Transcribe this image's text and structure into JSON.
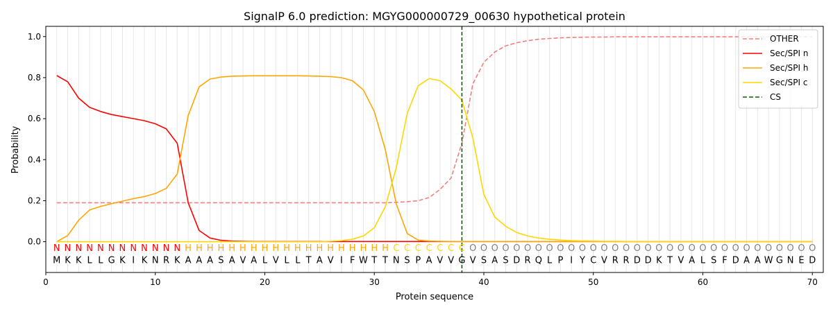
{
  "chart_data": {
    "type": "line",
    "title": "SignalP 6.0 prediction: MGYG000000729_00630 hypothetical protein",
    "xlabel": "Protein sequence",
    "ylabel": "Probability",
    "xlim": [
      0,
      71
    ],
    "ylim": [
      -0.15,
      1.05
    ],
    "x_ticks": [
      0,
      10,
      20,
      30,
      40,
      50,
      60,
      70
    ],
    "y_ticks": [
      0.0,
      0.2,
      0.4,
      0.6,
      0.8,
      1.0
    ],
    "legend_position": "top-right",
    "grid": "vertical lines at each residue",
    "sequence": [
      "M",
      "K",
      "K",
      "L",
      "L",
      "G",
      "K",
      "I",
      "K",
      "N",
      "R",
      "K",
      "A",
      "A",
      "A",
      "S",
      "A",
      "V",
      "A",
      "L",
      "V",
      "L",
      "L",
      "T",
      "A",
      "V",
      "I",
      "F",
      "W",
      "T",
      "T",
      "N",
      "S",
      "P",
      "A",
      "V",
      "V",
      "G",
      "V",
      "S",
      "A",
      "S",
      "D",
      "R",
      "Q",
      "L",
      "P",
      "I",
      "Y",
      "C",
      "V",
      "R",
      "R",
      "D",
      "D",
      "K",
      "T",
      "V",
      "A",
      "L",
      "S",
      "F",
      "D",
      "A",
      "A",
      "W",
      "G",
      "N",
      "E",
      "D"
    ],
    "region_labels": [
      "N",
      "N",
      "N",
      "N",
      "N",
      "N",
      "N",
      "N",
      "N",
      "N",
      "N",
      "N",
      "H",
      "H",
      "H",
      "H",
      "H",
      "H",
      "H",
      "H",
      "H",
      "H",
      "H",
      "H",
      "H",
      "H",
      "H",
      "H",
      "H",
      "H",
      "H",
      "C",
      "C",
      "C",
      "C",
      "C",
      "C",
      "C",
      "O",
      "O",
      "O",
      "O",
      "O",
      "O",
      "O",
      "O",
      "O",
      "O",
      "O",
      "O",
      "O",
      "O",
      "O",
      "O",
      "O",
      "O",
      "O",
      "O",
      "O",
      "O",
      "O",
      "O",
      "O",
      "O",
      "O",
      "O",
      "O",
      "O",
      "O",
      "O"
    ],
    "region_colors": {
      "N": "#ff0000",
      "H": "#ffa500",
      "C": "#ffd700",
      "O": "#808080"
    },
    "cleavage_site": 38,
    "series": [
      {
        "name": "OTHER",
        "color": "#f08080",
        "style": "dashed",
        "values": [
          0.19,
          0.19,
          0.19,
          0.19,
          0.19,
          0.19,
          0.19,
          0.19,
          0.19,
          0.19,
          0.19,
          0.19,
          0.19,
          0.19,
          0.19,
          0.19,
          0.19,
          0.19,
          0.19,
          0.19,
          0.19,
          0.19,
          0.19,
          0.19,
          0.19,
          0.19,
          0.19,
          0.19,
          0.19,
          0.19,
          0.19,
          0.192,
          0.195,
          0.2,
          0.215,
          0.255,
          0.31,
          0.48,
          0.77,
          0.875,
          0.925,
          0.955,
          0.97,
          0.98,
          0.987,
          0.991,
          0.994,
          0.996,
          0.997,
          0.998,
          0.998,
          0.999,
          0.999,
          0.999,
          0.999,
          0.999,
          0.999,
          0.999,
          0.999,
          0.999,
          0.999,
          0.999,
          0.999,
          0.999,
          0.999,
          0.999,
          0.999,
          0.999,
          0.999,
          0.999
        ]
      },
      {
        "name": "Sec/SPI n",
        "color": "#ff0000",
        "style": "solid",
        "values": [
          0.81,
          0.78,
          0.7,
          0.655,
          0.635,
          0.62,
          0.61,
          0.6,
          0.59,
          0.575,
          0.55,
          0.48,
          0.19,
          0.055,
          0.018,
          0.007,
          0.003,
          0.002,
          0.001,
          0.001,
          0.001,
          0.001,
          0.001,
          0.001,
          0.001,
          0.001,
          0.001,
          0.001,
          0.001,
          0.001,
          0.001,
          0.001,
          0.001,
          0.001,
          0.001,
          0.001,
          0.001,
          0.001,
          0.001,
          0.001,
          0.001,
          0.001,
          0.001,
          0.001,
          0.001,
          0.001,
          0.001,
          0.001,
          0.001,
          0.001,
          0.001,
          0.001,
          0.001,
          0.001,
          0.001,
          0.001,
          0.001,
          0.001,
          0.001,
          0.001,
          0.001,
          0.001,
          0.001,
          0.001,
          0.001,
          0.001,
          0.001,
          0.001,
          0.001,
          0.001
        ]
      },
      {
        "name": "Sec/SPI h",
        "color": "#ffa500",
        "style": "solid",
        "values": [
          0.0,
          0.03,
          0.105,
          0.155,
          0.172,
          0.185,
          0.198,
          0.21,
          0.22,
          0.235,
          0.26,
          0.33,
          0.615,
          0.755,
          0.793,
          0.803,
          0.807,
          0.808,
          0.809,
          0.809,
          0.809,
          0.809,
          0.809,
          0.808,
          0.807,
          0.805,
          0.8,
          0.785,
          0.74,
          0.635,
          0.45,
          0.185,
          0.04,
          0.008,
          0.003,
          0.002,
          0.001,
          0.001,
          0.001,
          0.001,
          0.001,
          0.001,
          0.001,
          0.001,
          0.001,
          0.001,
          0.001,
          0.001,
          0.001,
          0.001,
          0.001,
          0.001,
          0.001,
          0.001,
          0.001,
          0.001,
          0.001,
          0.001,
          0.001,
          0.001,
          0.001,
          0.001,
          0.001,
          0.001,
          0.001,
          0.001,
          0.001,
          0.001,
          0.001,
          0.001
        ]
      },
      {
        "name": "Sec/SPI c",
        "color": "#ffd700",
        "style": "solid",
        "values": [
          0.0,
          0.0,
          0.0,
          0.0,
          0.0,
          0.0,
          0.0,
          0.0,
          0.0,
          0.0,
          0.0,
          0.0,
          0.0,
          0.0,
          0.0,
          0.0,
          0.0,
          0.0,
          0.0,
          0.0,
          0.0,
          0.0,
          0.0,
          0.0,
          0.0,
          0.002,
          0.005,
          0.012,
          0.028,
          0.068,
          0.17,
          0.36,
          0.625,
          0.76,
          0.795,
          0.785,
          0.745,
          0.69,
          0.505,
          0.23,
          0.12,
          0.075,
          0.045,
          0.028,
          0.018,
          0.012,
          0.008,
          0.005,
          0.004,
          0.003,
          0.002,
          0.002,
          0.001,
          0.001,
          0.001,
          0.001,
          0.001,
          0.001,
          0.001,
          0.001,
          0.001,
          0.001,
          0.001,
          0.001,
          0.001,
          0.001,
          0.001,
          0.001,
          0.001,
          0.001
        ]
      }
    ],
    "legend": [
      {
        "label": "OTHER",
        "color": "#f08080",
        "style": "dashed"
      },
      {
        "label": "Sec/SPI n",
        "color": "#ff0000",
        "style": "solid"
      },
      {
        "label": "Sec/SPI h",
        "color": "#ffa500",
        "style": "solid"
      },
      {
        "label": "Sec/SPI c",
        "color": "#ffd700",
        "style": "solid"
      },
      {
        "label": "CS",
        "color": "#006400",
        "style": "dashed"
      }
    ]
  }
}
